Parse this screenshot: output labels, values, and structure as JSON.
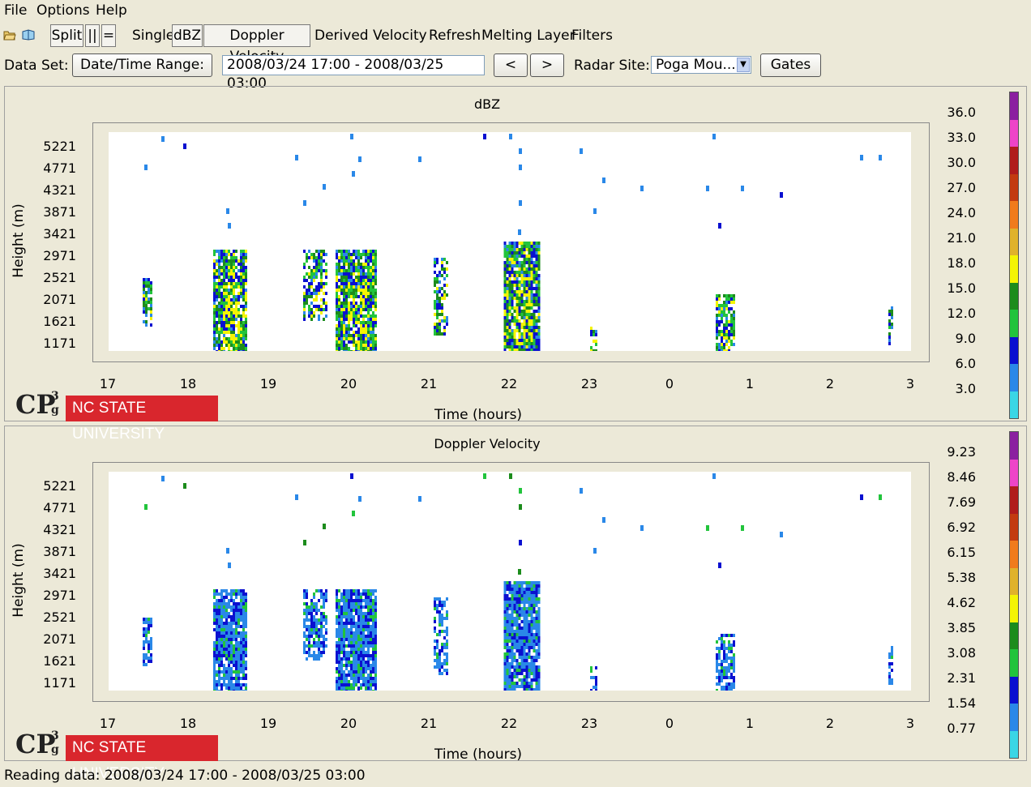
{
  "menu": {
    "file": "File",
    "options": "Options",
    "help": "Help"
  },
  "toolbar": {
    "split": "Split",
    "parallel": "||",
    "equal": "=",
    "single": "Single",
    "dbz": "dBZ",
    "doppler": "Doppler Velocity",
    "derived": "Derived Velocity",
    "refresh": "Refresh",
    "melting": "Melting Layer",
    "filters": "Filters"
  },
  "dataset": {
    "label": "Data Set:",
    "range_button": "Date/Time Range:",
    "range_value": "2008/03/24 17:00 - 2008/03/25 03:00",
    "prev": "<",
    "next": ">",
    "radar_label": "Radar Site:",
    "radar_value": "Poga Mou...",
    "gates": "Gates"
  },
  "plots": [
    {
      "title": "dBZ",
      "ylabel": "Height (m)",
      "xlabel": "Time (hours)",
      "yticks": [
        "5221",
        "4771",
        "4321",
        "3871",
        "3421",
        "2971",
        "2521",
        "2071",
        "1621",
        "1171"
      ],
      "xticks": [
        "17",
        "18",
        "19",
        "20",
        "21",
        "22",
        "23",
        "0",
        "1",
        "2",
        "3"
      ],
      "colorbar": [
        "36.0",
        "33.0",
        "30.0",
        "27.0",
        "24.0",
        "21.0",
        "18.0",
        "15.0",
        "12.0",
        "9.0",
        "6.0",
        "3.0"
      ]
    },
    {
      "title": "Doppler Velocity",
      "ylabel": "Height (m)",
      "xlabel": "Time (hours)",
      "yticks": [
        "5221",
        "4771",
        "4321",
        "3871",
        "3421",
        "2971",
        "2521",
        "2071",
        "1621",
        "1171"
      ],
      "xticks": [
        "17",
        "18",
        "19",
        "20",
        "21",
        "22",
        "23",
        "0",
        "1",
        "2",
        "3"
      ],
      "colorbar": [
        "9.23",
        "8.46",
        "7.69",
        "6.92",
        "6.15",
        "5.38",
        "4.62",
        "3.85",
        "3.08",
        "2.31",
        "1.54",
        "0.77"
      ]
    }
  ],
  "colors": {
    "colorbar": [
      "#8b1fa0",
      "#ee44c8",
      "#b01c1c",
      "#c33b10",
      "#f07b1c",
      "#e0b22b",
      "#f4f404",
      "#1c8c1c",
      "#22c43c",
      "#0a10d0",
      "#2a88e8",
      "#3ad6e6"
    ]
  },
  "logo": {
    "cp3": "CP",
    "cp3_super": "3",
    "cp3_sub": "g",
    "university": "NC STATE UNIVERSITY"
  },
  "status": "Reading data: 2008/03/24 17:00 - 2008/03/25 03:00"
}
